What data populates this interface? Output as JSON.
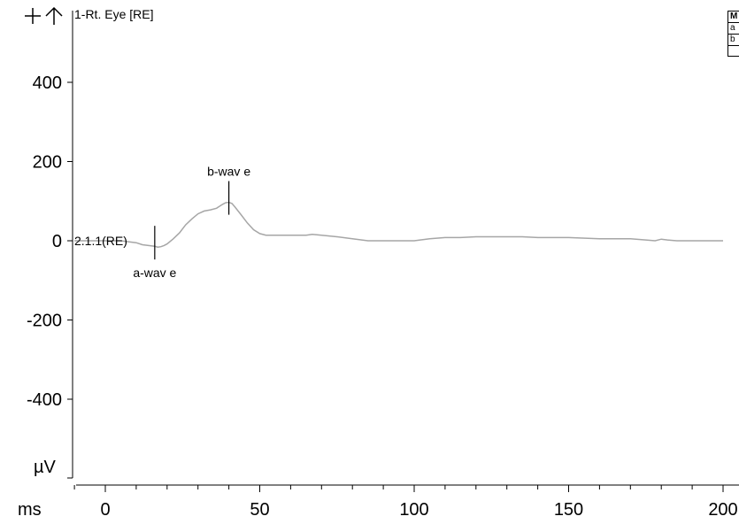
{
  "toolbar": {
    "zoom_in_icon": "plus-icon",
    "move_up_icon": "up-arrow-icon"
  },
  "legend": {
    "rows": [
      "M",
      "a",
      "b"
    ]
  },
  "chart_data": {
    "type": "line",
    "title": "1-Rt. Eye [RE]",
    "xlabel": "ms",
    "ylabel": "µV",
    "xlim": [
      -10,
      200
    ],
    "ylim": [
      -600,
      520
    ],
    "x_ticks": [
      0,
      50,
      100,
      150,
      200
    ],
    "y_ticks": [
      400,
      200,
      0,
      -200,
      -400
    ],
    "x_tick_labels": [
      "0",
      "50",
      "100",
      "150",
      "200"
    ],
    "y_tick_labels": [
      "400",
      "200",
      "0",
      "-200",
      "-400"
    ],
    "series": [
      {
        "name": "2.1.1(RE)",
        "color": "#a6a6a6",
        "x": [
          -10,
          0,
          5,
          10,
          12,
          14,
          16,
          17,
          18,
          19,
          20,
          22,
          24,
          26,
          28,
          30,
          32,
          34,
          36,
          38,
          39,
          40,
          41,
          42,
          44,
          46,
          48,
          50,
          52,
          55,
          60,
          65,
          67,
          70,
          75,
          80,
          85,
          90,
          100,
          105,
          110,
          115,
          120,
          125,
          130,
          135,
          140,
          150,
          160,
          170,
          175,
          178,
          180,
          182,
          185,
          190,
          200
        ],
        "y": [
          0,
          0,
          0,
          -5,
          -10,
          -12,
          -14,
          -16,
          -15,
          -12,
          -8,
          5,
          20,
          40,
          55,
          68,
          75,
          78,
          82,
          92,
          96,
          97,
          94,
          85,
          65,
          45,
          28,
          18,
          14,
          14,
          14,
          14,
          16,
          14,
          10,
          5,
          0,
          0,
          0,
          5,
          8,
          8,
          10,
          10,
          10,
          10,
          8,
          8,
          5,
          5,
          2,
          0,
          4,
          2,
          0,
          0,
          0
        ]
      }
    ],
    "annotations": [
      {
        "label": "a-wav e",
        "x": 16,
        "y": -16
      },
      {
        "label": "b-wav e",
        "x": 40,
        "y": 97
      }
    ],
    "trace_label": "2.1.1(RE)",
    "grid": false
  }
}
